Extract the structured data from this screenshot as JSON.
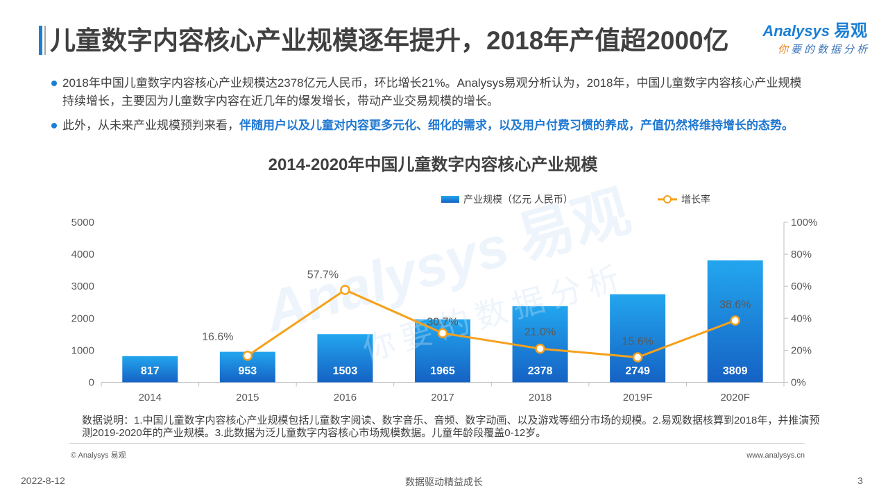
{
  "header": {
    "title": "儿童数字内容核心产业规模逐年提升，2018年产值超2000亿"
  },
  "logo": {
    "brand": "Analysys",
    "brand_cn": "易观",
    "tagline_first": "你",
    "tagline_rest": "要的数据分析"
  },
  "bullets": [
    {
      "lines": [
        "2018年中国儿童数字内容核心产业规模达2378亿元人民币，环比增长21%。Analysys易观分析认为，2018年，中国儿童数字内容核心产业规模",
        "持续增长，主要因为儿童数字内容在近几年的爆发增长，带动产业交易规模的增长。"
      ]
    },
    {
      "plain": "此外，从未来产业规模预判来看，",
      "highlight": "伴随用户以及儿童对内容更多元化、细化的需求，以及用户付费习惯的养成，产值仍然将维持增长的态势。"
    }
  ],
  "chart_data": {
    "type": "bar",
    "title": "2014-2020年中国儿童数字内容核心产业规模",
    "categories": [
      "2014",
      "2015",
      "2016",
      "2017",
      "2018",
      "2019F",
      "2020F"
    ],
    "series": [
      {
        "name": "产业规模（亿元 人民币）",
        "type": "bar",
        "axis": "left",
        "values": [
          817,
          953,
          1503,
          1965,
          2378,
          2749,
          3809
        ]
      },
      {
        "name": "增长率",
        "type": "line",
        "axis": "right",
        "unit": "%",
        "values": [
          null,
          16.6,
          57.7,
          30.7,
          21.0,
          15.6,
          38.6
        ]
      }
    ],
    "ylim": [
      0,
      5000
    ],
    "y_ticks": [
      0,
      1000,
      2000,
      3000,
      4000,
      5000
    ],
    "y2lim": [
      0,
      100
    ],
    "y2_ticks": [
      0,
      20,
      40,
      60,
      80,
      100
    ],
    "y2_tick_suffix": "%",
    "grid": false,
    "legend": "top-center",
    "data_labels": true
  },
  "note": {
    "lines": [
      "数据说明：1.中国儿童数字内容核心产业规模包括儿童数字阅读、数字音乐、音频、数字动画、以及游戏等细分市场的规模。2.易观数据核算到2018年，并推演预",
      "测2019-2020年的产业规模。3.此数据为泛儿童数字内容核心市场规模数据。儿童年龄段覆盖0-12岁。"
    ]
  },
  "source": {
    "copyright": "© Analysys 易观",
    "website": "www.analysys.cn"
  },
  "footer": {
    "date": "2022-8-12",
    "slogan": "数据驱动精益成长",
    "page_number": "3"
  },
  "watermark": {
    "brand": "Analysys",
    "brand_cn": "易观",
    "tagline": "你要的数据分析"
  },
  "colors": {
    "accent": "#1a7fd4",
    "highlight": "#1f78d1",
    "bar_top": "#23a6ee",
    "bar_bottom": "#1562c4",
    "line": "#f5a11d",
    "tagline_orange": "#f0831e"
  }
}
